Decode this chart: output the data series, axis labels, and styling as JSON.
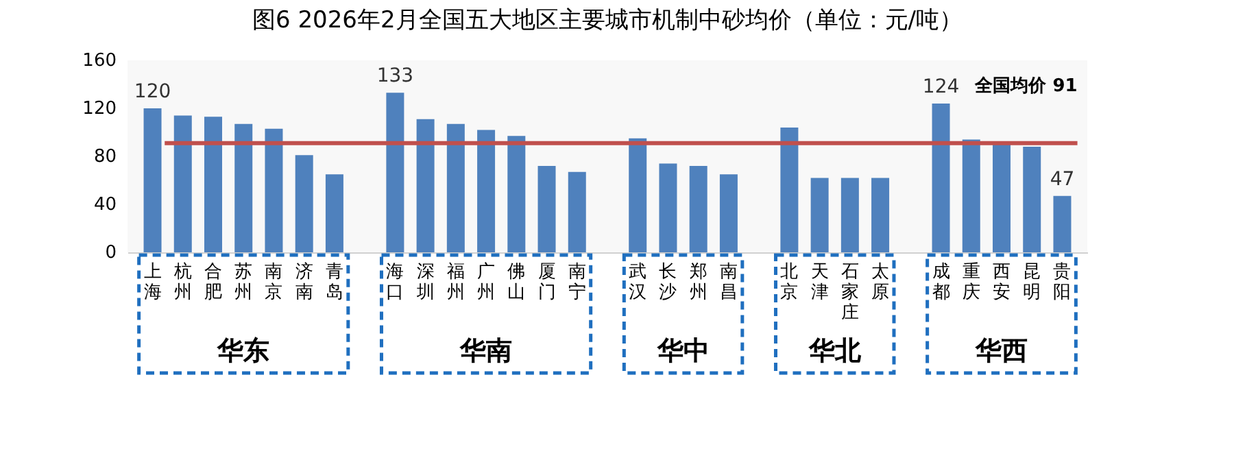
{
  "chart_data": {
    "type": "bar",
    "title": "图6 2026年2月全国五大地区主要城市机制中砂均价（单位：元/吨）",
    "categories": [
      "上海",
      "杭州",
      "合肥",
      "苏州",
      "南京",
      "济南",
      "青岛",
      null,
      "海口",
      "深圳",
      "福州",
      "广州",
      "佛山",
      "厦门",
      "南宁",
      null,
      "武汉",
      "长沙",
      "郑州",
      "南昌",
      null,
      "北京",
      "天津",
      "石家庄",
      "太原",
      null,
      "成都",
      "重庆",
      "西安",
      "昆明",
      "贵阳"
    ],
    "series": [
      {
        "color": "#4f81bd",
        "values": [
          120,
          114,
          113,
          107,
          103,
          81,
          65,
          null,
          133,
          111,
          107,
          102,
          97,
          72,
          67,
          null,
          95,
          74,
          72,
          65,
          null,
          104,
          62,
          62,
          62,
          null,
          124,
          94,
          91,
          88,
          47
        ]
      }
    ],
    "value_labels": [
      "120",
      null,
      null,
      null,
      null,
      null,
      null,
      null,
      "133",
      null,
      null,
      null,
      null,
      null,
      null,
      null,
      null,
      null,
      null,
      null,
      null,
      null,
      null,
      null,
      null,
      null,
      "124",
      null,
      null,
      null,
      "47"
    ],
    "ylim": [
      0,
      160
    ],
    "yticks": [
      0,
      40,
      80,
      120,
      160
    ],
    "grid": false,
    "ref_lines": [
      {
        "axis": "y",
        "value": 91,
        "label": "全国均价  91",
        "color": "#c0504d"
      }
    ],
    "annotations": [
      "华东",
      "华南",
      "华中",
      "华北",
      "华西"
    ]
  }
}
